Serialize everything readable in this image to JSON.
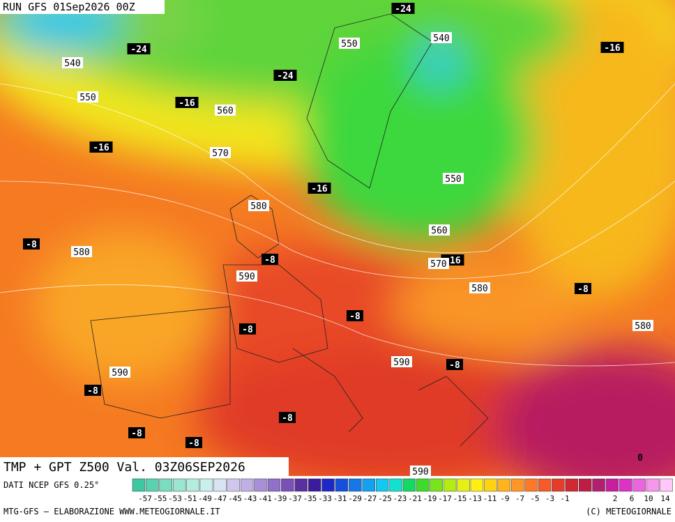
{
  "header": {
    "run": "RUN GFS 01Sep2026 00Z"
  },
  "map": {
    "caption": "TMP + GPT Z500 Val. 03Z06SEP2026",
    "temp_labels": [
      -24,
      -24,
      -24,
      -16,
      -16,
      -16,
      -16,
      -8,
      -8,
      -16,
      -8,
      -8,
      -8,
      -8,
      -8,
      -8,
      -8,
      -8,
      0
    ],
    "height_labels": [
      540,
      550,
      540,
      550,
      560,
      570,
      580,
      550,
      560,
      580,
      570,
      590,
      580,
      580,
      590,
      590,
      590
    ]
  },
  "legend": {
    "source": "DATI NCEP GFS 0.25°",
    "ticks": [
      -57,
      -55,
      -53,
      -51,
      -49,
      -47,
      -45,
      -43,
      -41,
      -39,
      -37,
      -35,
      -33,
      -31,
      -29,
      -27,
      -25,
      -23,
      -21,
      -19,
      -17,
      -15,
      -13,
      -11,
      -9,
      -7,
      -5,
      -3,
      -1,
      2,
      6,
      10,
      14
    ],
    "colors": [
      "#3cc8a0",
      "#5ad2b0",
      "#7adcc0",
      "#9ae6d0",
      "#b4ece0",
      "#c8f0ec",
      "#d8e4f4",
      "#d0c8ec",
      "#c0b0e4",
      "#a890d8",
      "#9070c8",
      "#7850b8",
      "#5a30a0",
      "#3c1c9c",
      "#1e28c8",
      "#1450dc",
      "#1478e8",
      "#14a0f0",
      "#14c8f0",
      "#14e0d0",
      "#14d864",
      "#3cdc28",
      "#78e41e",
      "#b4ec14",
      "#e6f014",
      "#fff014",
      "#ffd214",
      "#ffb41e",
      "#ff9628",
      "#ff7828",
      "#f55a28",
      "#e63c28",
      "#d22832",
      "#be1e46",
      "#b41e6e",
      "#c81ea0",
      "#dc32c8",
      "#ec64e0",
      "#f896ec",
      "#ffc8f8"
    ]
  },
  "footer": {
    "credit": "MTG-GFS – ELABORAZIONE WWW.METEOGIORNALE.IT",
    "copyright": "(C) METEOGIORNALE"
  }
}
